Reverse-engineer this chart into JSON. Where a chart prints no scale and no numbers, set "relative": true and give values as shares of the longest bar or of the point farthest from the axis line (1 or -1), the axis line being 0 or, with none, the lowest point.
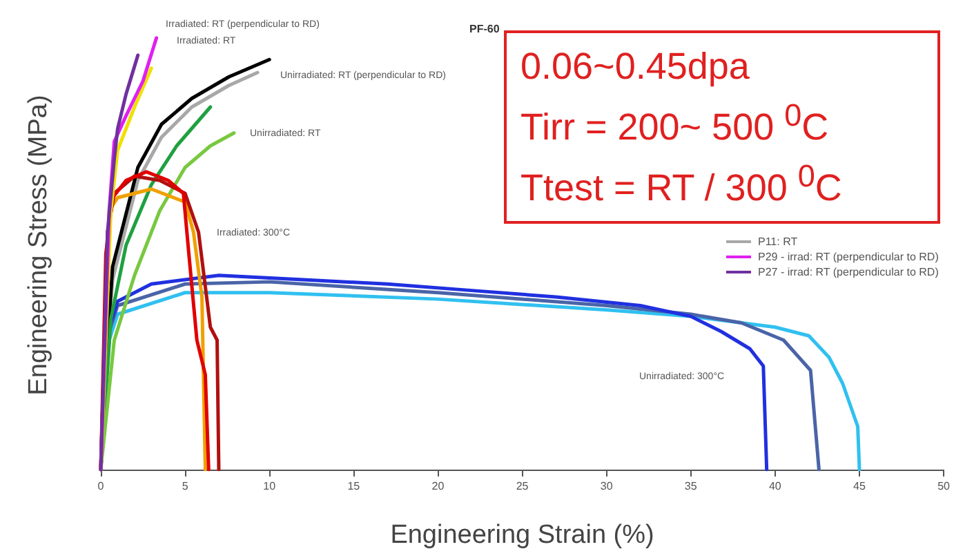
{
  "chart_data": {
    "type": "line",
    "title": "PF-60",
    "xlabel": "Engineering Strain (%)",
    "ylabel": "Engineering Stress (MPa)",
    "relative": true,
    "xlim": [
      0,
      50
    ],
    "xticks": [
      0,
      5,
      10,
      15,
      20,
      25,
      30,
      35,
      40,
      45,
      50
    ],
    "grid": false,
    "legend": "right",
    "marker": "none",
    "line_style": "solid",
    "annotations": [
      "Irradiated: RT (perpendicular to RD)",
      "Irradiated: RT",
      "Unirradiated: RT (perpendicular to RD)",
      "Unirradiated: RT",
      "Irradiated: 300°C",
      "Unirradiated: 300°C",
      "0.06~0.45dpa",
      "Tirr = 200~ 500 $^{0}$C",
      "Ttest = RT / 300 $^{0}$C"
    ],
    "series": [
      {
        "color": "#30c0f0",
        "x": [
          0,
          0.5,
          1,
          5,
          10,
          20,
          30,
          35,
          40,
          42,
          43.2,
          44,
          44.9,
          45
        ],
        "values": [
          0,
          0.3,
          0.36,
          0.41,
          0.41,
          0.395,
          0.37,
          0.355,
          0.33,
          0.31,
          0.26,
          0.2,
          0.1,
          0
        ]
      },
      {
        "color": "#4a64a8",
        "x": [
          0,
          0.5,
          1,
          5,
          10,
          20,
          30,
          35,
          38,
          40.5,
          42.1,
          42.6
        ],
        "values": [
          0,
          0.32,
          0.38,
          0.43,
          0.435,
          0.41,
          0.38,
          0.36,
          0.34,
          0.3,
          0.23,
          0
        ]
      },
      {
        "color": "#2030e0",
        "x": [
          0,
          0.5,
          1,
          3,
          7,
          12,
          17,
          22,
          27,
          32,
          35,
          36.8,
          38.5,
          39.3,
          39.5
        ],
        "values": [
          0,
          0.33,
          0.39,
          0.43,
          0.45,
          0.44,
          0.43,
          0.415,
          0.4,
          0.38,
          0.355,
          0.32,
          0.28,
          0.24,
          0
        ]
      },
      {
        "name": "P11: RT",
        "color": "#a8a8a8",
        "x": [
          0,
          0.4,
          0.7,
          2.2,
          3.6,
          5.4,
          7.6,
          9.3
        ],
        "values": [
          0,
          0.28,
          0.44,
          0.67,
          0.77,
          0.84,
          0.89,
          0.92
        ]
      },
      {
        "color": "#000000",
        "x": [
          0,
          0.4,
          0.7,
          2.2,
          3.6,
          5.4,
          7.6,
          10
        ],
        "values": [
          0,
          0.3,
          0.47,
          0.7,
          0.8,
          0.86,
          0.91,
          0.95
        ]
      },
      {
        "color": "#20a040",
        "x": [
          0,
          0.6,
          1.5,
          3,
          4.5,
          6.5
        ],
        "values": [
          0,
          0.35,
          0.52,
          0.66,
          0.75,
          0.84
        ]
      },
      {
        "color": "#78c840",
        "x": [
          0,
          0.8,
          2,
          3.5,
          5,
          6.5,
          7.9
        ],
        "values": [
          0,
          0.3,
          0.45,
          0.6,
          0.7,
          0.75,
          0.78
        ]
      },
      {
        "color": "#f0a000",
        "x": [
          0,
          0.5,
          1,
          3,
          5,
          5.5,
          6,
          6.2
        ],
        "values": [
          0,
          0.6,
          0.63,
          0.65,
          0.62,
          0.55,
          0.4,
          0
        ]
      },
      {
        "color": "#b01010",
        "x": [
          0,
          0.4,
          0.8,
          2,
          3.5,
          5,
          5.8,
          6.5,
          6.9,
          7
        ],
        "values": [
          0,
          0.55,
          0.64,
          0.68,
          0.67,
          0.64,
          0.55,
          0.33,
          0.3,
          0
        ]
      },
      {
        "color": "#e00000",
        "x": [
          0,
          0.3,
          0.7,
          1.5,
          2.7,
          4,
          4.9,
          5.2,
          5.7,
          6.2,
          6.4
        ],
        "values": [
          0,
          0.5,
          0.63,
          0.67,
          0.69,
          0.67,
          0.64,
          0.51,
          0.3,
          0.22,
          0
        ]
      },
      {
        "color": "#f0e000",
        "x": [
          0,
          0.6,
          1,
          2,
          3
        ],
        "values": [
          0,
          0.6,
          0.74,
          0.84,
          0.93
        ]
      },
      {
        "name": "P29 - irrad: RT (perpendicular to RD)",
        "color": "#e020f0",
        "x": [
          0,
          0.5,
          0.8,
          1.5,
          2.5,
          3.3
        ],
        "values": [
          0,
          0.6,
          0.76,
          0.82,
          0.9,
          1
        ]
      },
      {
        "name": "P27 - irrad: RT (perpendicular to RD)",
        "color": "#7030a0",
        "x": [
          0,
          0.4,
          0.8,
          1,
          1.5,
          2.2
        ],
        "values": [
          0,
          0.55,
          0.72,
          0.79,
          0.87,
          0.96
        ]
      }
    ]
  }
}
